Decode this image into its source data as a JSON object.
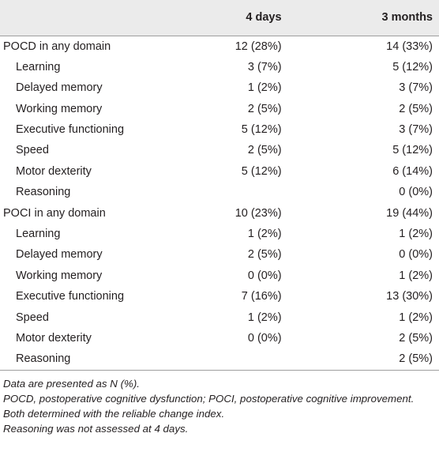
{
  "header": {
    "col_label": "",
    "col_4days": "4 days",
    "col_3months": "3 months"
  },
  "rows": [
    {
      "label": "POCD in any domain",
      "d4": "12 (28%)",
      "m3": "14 (33%)"
    },
    {
      "label": "Learning",
      "d4": "3 (7%)",
      "m3": "5 (12%)"
    },
    {
      "label": "Delayed memory",
      "d4": "1 (2%)",
      "m3": "3 (7%)"
    },
    {
      "label": "Working memory",
      "d4": "2 (5%)",
      "m3": "2 (5%)"
    },
    {
      "label": "Executive functioning",
      "d4": "5 (12%)",
      "m3": "3 (7%)"
    },
    {
      "label": "Speed",
      "d4": "2 (5%)",
      "m3": "5 (12%)"
    },
    {
      "label": "Motor dexterity",
      "d4": "5 (12%)",
      "m3": "6 (14%)"
    },
    {
      "label": "Reasoning",
      "d4": "",
      "m3": "0 (0%)"
    },
    {
      "label": "POCI in any domain",
      "d4": "10 (23%)",
      "m3": "19 (44%)"
    },
    {
      "label": "Learning",
      "d4": "1 (2%)",
      "m3": "1 (2%)"
    },
    {
      "label": "Delayed memory",
      "d4": "2 (5%)",
      "m3": "0 (0%)"
    },
    {
      "label": "Working memory",
      "d4": "0 (0%)",
      "m3": "1 (2%)"
    },
    {
      "label": "Executive functioning",
      "d4": "7 (16%)",
      "m3": "13 (30%)"
    },
    {
      "label": "Speed",
      "d4": "1 (2%)",
      "m3": "1 (2%)"
    },
    {
      "label": "Motor dexterity",
      "d4": "0 (0%)",
      "m3": "2 (5%)"
    },
    {
      "label": "Reasoning",
      "d4": "",
      "m3": "2 (5%)"
    }
  ],
  "notes": {
    "line1": "Data are presented as N (%).",
    "line2": "POCD, postoperative cognitive dysfunction; POCI, postoperative cognitive improvement.",
    "line3": "Both determined with the reliable change index.",
    "line4": "Reasoning was not assessed at 4 days."
  }
}
